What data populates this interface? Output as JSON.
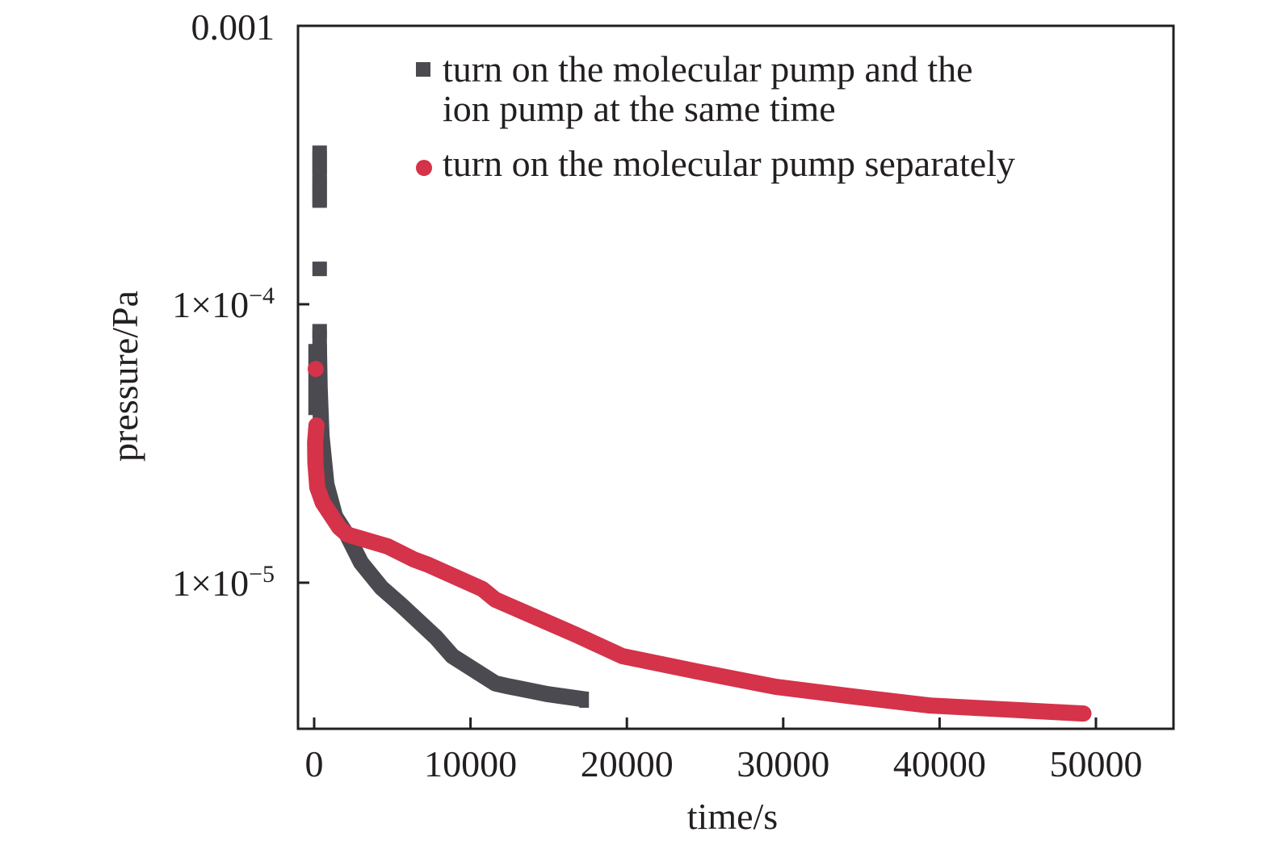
{
  "chart_data": {
    "type": "line",
    "title": "",
    "xlabel": "time/s",
    "ylabel": "pressure/Pa",
    "xlim": [
      -1000,
      55000
    ],
    "ylim": [
      3e-06,
      0.001
    ],
    "yscale": "log",
    "grid": false,
    "legend_position": "top-right",
    "x_ticks": [
      {
        "value": 0,
        "label": "0"
      },
      {
        "value": 10000,
        "label": "10000"
      },
      {
        "value": 20000,
        "label": "20000"
      },
      {
        "value": 30000,
        "label": "30000"
      },
      {
        "value": 40000,
        "label": "40000"
      },
      {
        "value": 50000,
        "label": "50000"
      }
    ],
    "y_ticks": [
      {
        "value": 0.001,
        "label": "0.001",
        "base": "0.001",
        "exp": ""
      },
      {
        "value": 0.0001,
        "label": "1×10−4",
        "base": "1×10",
        "exp": "−4"
      },
      {
        "value": 1e-05,
        "label": "1×10−5",
        "base": "1×10",
        "exp": "−5"
      }
    ],
    "series": [
      {
        "name": "turn on the molecular pump and the ion pump at the same time",
        "legend_lines": [
          "turn on the molecular pump and the",
          "ion pump at the same time"
        ],
        "marker": "square",
        "color": "#4a4a50",
        "scatter_points": [
          {
            "x": 350,
            "y": 0.00035
          },
          {
            "x": 350,
            "y": 0.00031
          },
          {
            "x": 350,
            "y": 0.00027
          },
          {
            "x": 350,
            "y": 0.00024
          },
          {
            "x": 350,
            "y": 0.000134
          },
          {
            "x": 350,
            "y": 8e-05
          }
        ],
        "x": [
          300,
          350,
          470,
          780,
          1340,
          2120,
          3000,
          4300,
          5580,
          7800,
          8840,
          11580,
          12300,
          14900,
          17470
        ],
        "y": [
          7.2e-05,
          5e-05,
          3.37e-05,
          2.26e-05,
          1.73e-05,
          1.48e-05,
          1.18e-05,
          9.6e-06,
          8.3e-06,
          6.35e-06,
          5.45e-06,
          4.35e-06,
          4.26e-06,
          3.98e-06,
          3.8e-06
        ]
      },
      {
        "name": "turn on the molecular pump separately",
        "legend_lines": [
          "turn on the molecular pump separately"
        ],
        "marker": "circle",
        "color": "#d4334a",
        "scatter_points": [
          {
            "x": 100,
            "y": 5.86e-05
          }
        ],
        "x": [
          150,
          60,
          80,
          200,
          550,
          1600,
          2120,
          4700,
          6400,
          7290,
          10750,
          11580,
          16740,
          19700,
          24500,
          29500,
          34500,
          39400,
          44500,
          49200
        ],
        "y": [
          3.67e-05,
          3.2e-05,
          2.7e-05,
          2.2e-05,
          1.94e-05,
          1.58e-05,
          1.49e-05,
          1.35e-05,
          1.21e-05,
          1.16e-05,
          9.5e-06,
          8.7e-06,
          6.5e-06,
          5.45e-06,
          4.8e-06,
          4.23e-06,
          3.9e-06,
          3.62e-06,
          3.5e-06,
          3.39e-06
        ]
      }
    ]
  }
}
